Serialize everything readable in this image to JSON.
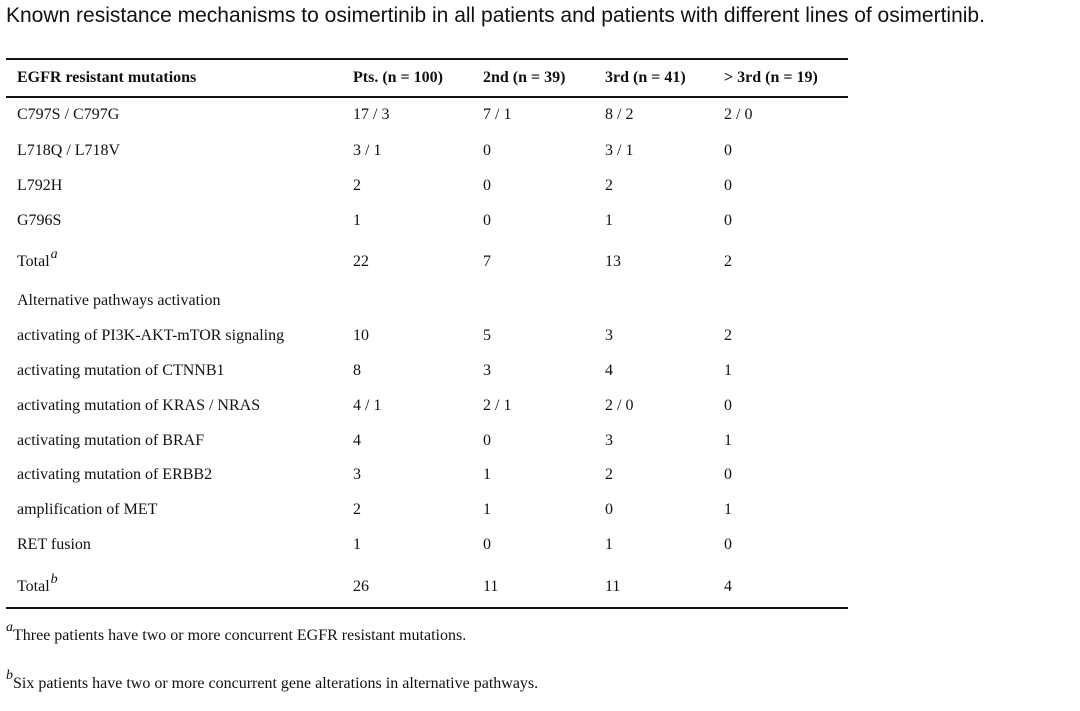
{
  "caption": "Known resistance mechanisms to osimertinib in all patients and patients with different lines of osimertinib.",
  "table": {
    "headers": [
      "EGFR resistant mutations",
      "Pts. (n = 100)",
      "2nd (n = 39)",
      "3rd (n = 41)",
      "> 3rd (n = 19)"
    ],
    "rows": [
      {
        "label": "C797S / C797G",
        "sup": "",
        "values": [
          "17 / 3",
          "7 / 1",
          "8 / 2",
          "2 / 0"
        ]
      },
      {
        "label": "L718Q / L718V",
        "sup": "",
        "values": [
          "3 / 1",
          "0",
          "3 / 1",
          "0"
        ]
      },
      {
        "label": "L792H",
        "sup": "",
        "values": [
          "2",
          "0",
          "2",
          "0"
        ]
      },
      {
        "label": "G796S",
        "sup": "",
        "values": [
          "1",
          "0",
          "1",
          "0"
        ]
      },
      {
        "label": "Total",
        "sup": "a",
        "values": [
          "22",
          "7",
          "13",
          "2"
        ]
      },
      {
        "label": "Alternative pathways activation",
        "sup": "",
        "values": [
          "",
          "",
          "",
          ""
        ]
      },
      {
        "label": "activating of PI3K-AKT-mTOR signaling",
        "sup": "",
        "values": [
          "10",
          "5",
          "3",
          "2"
        ]
      },
      {
        "label": "activating mutation of CTNNB1",
        "sup": "",
        "values": [
          "8",
          "3",
          "4",
          "1"
        ]
      },
      {
        "label": "activating mutation of KRAS / NRAS",
        "sup": "",
        "values": [
          "4 / 1",
          "2 / 1",
          "2 / 0",
          "0"
        ]
      },
      {
        "label": "activating mutation of BRAF",
        "sup": "",
        "values": [
          "4",
          "0",
          "3",
          "1"
        ]
      },
      {
        "label": "activating mutation of ERBB2",
        "sup": "",
        "values": [
          "3",
          "1",
          "2",
          "0"
        ]
      },
      {
        "label": "amplification of MET",
        "sup": "",
        "values": [
          "2",
          "1",
          "0",
          "1"
        ]
      },
      {
        "label": "RET fusion",
        "sup": "",
        "values": [
          "1",
          "0",
          "1",
          "0"
        ]
      },
      {
        "label": "Total",
        "sup": "b",
        "values": [
          "26",
          "11",
          "11",
          "4"
        ]
      }
    ]
  },
  "footnotes": [
    {
      "mark": "a",
      "text": "Three patients have two or more concurrent EGFR resistant mutations."
    },
    {
      "mark": "b",
      "text": "Six patients have two or more concurrent gene alterations in alternative pathways."
    }
  ]
}
